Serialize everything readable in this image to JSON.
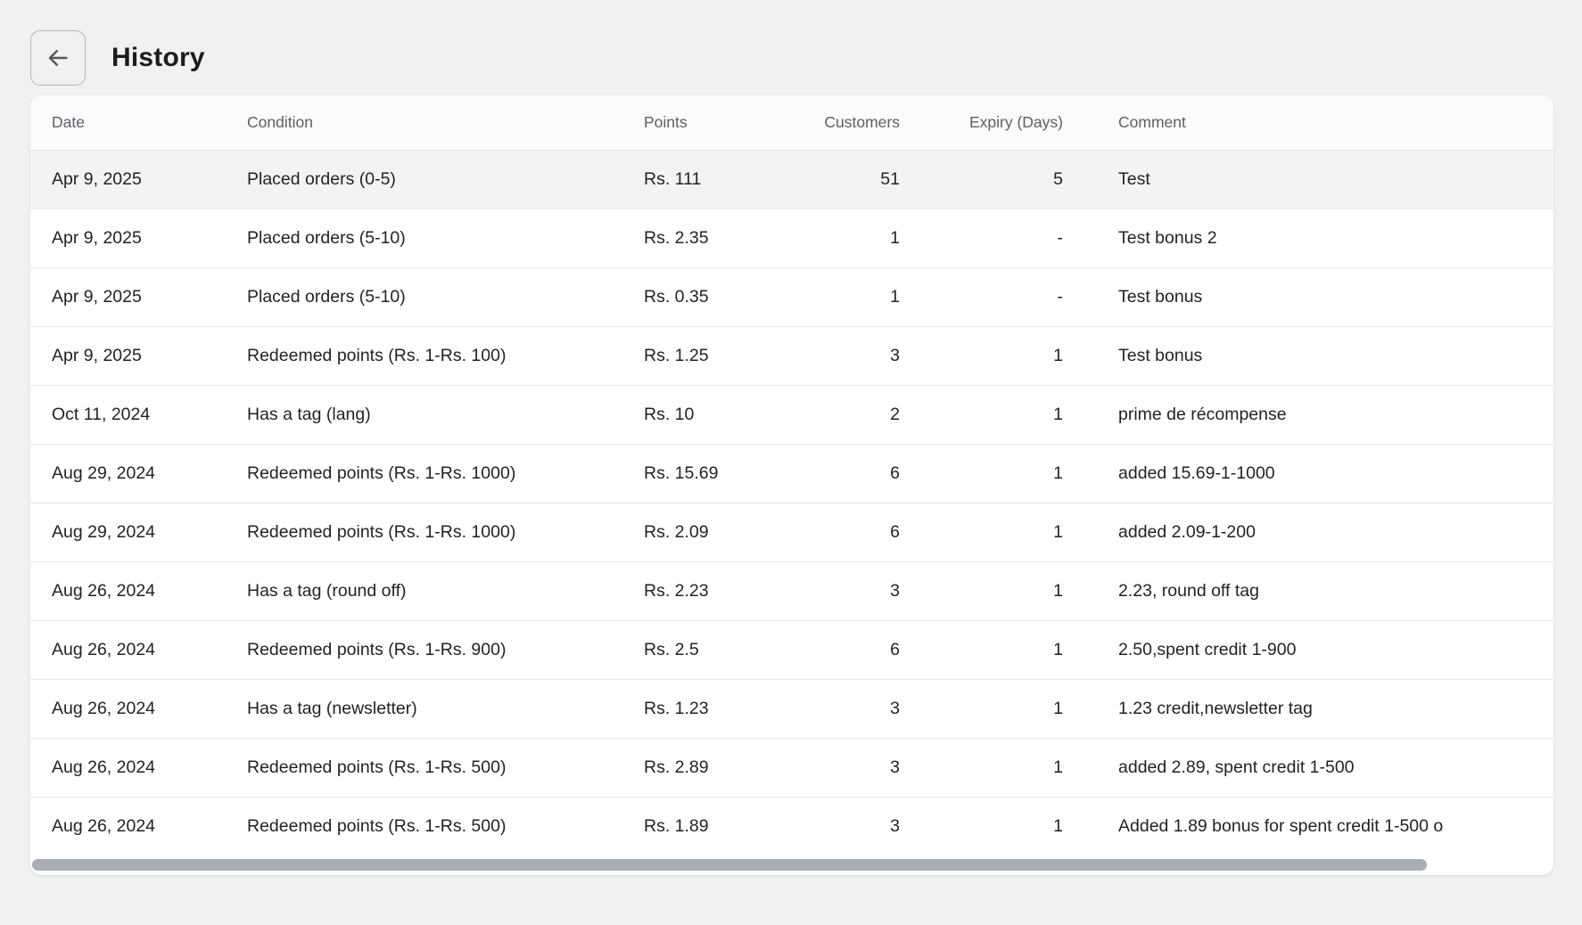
{
  "page": {
    "title": "History"
  },
  "header": {
    "back_button": {
      "icon_name": "arrow-left-icon",
      "glyph": "←"
    }
  },
  "table": {
    "columns": [
      {
        "key": "date",
        "label": "Date",
        "align": "left"
      },
      {
        "key": "condition",
        "label": "Condition",
        "align": "left"
      },
      {
        "key": "points",
        "label": "Points",
        "align": "left"
      },
      {
        "key": "customers",
        "label": "Customers",
        "align": "right"
      },
      {
        "key": "expiry",
        "label": "Expiry (Days)",
        "align": "right"
      },
      {
        "key": "comment",
        "label": "Comment",
        "align": "left"
      }
    ],
    "rows": [
      [
        "Apr 9, 2025",
        "Placed orders (0-5)",
        "Rs. 111",
        "51",
        "5",
        "Test"
      ],
      [
        "Apr 9, 2025",
        "Placed orders (5-10)",
        "Rs. 2.35",
        "1",
        "-",
        "Test bonus 2"
      ],
      [
        "Apr 9, 2025",
        "Placed orders (5-10)",
        "Rs. 0.35",
        "1",
        "-",
        "Test bonus"
      ],
      [
        "Apr 9, 2025",
        "Redeemed points (Rs. 1-Rs. 100)",
        "Rs. 1.25",
        "3",
        "1",
        "Test bonus"
      ],
      [
        "Oct 11, 2024",
        "Has a tag (lang)",
        "Rs. 10",
        "2",
        "1",
        "prime de récompense"
      ],
      [
        "Aug 29, 2024",
        "Redeemed points (Rs. 1-Rs. 1000)",
        "Rs. 15.69",
        "6",
        "1",
        "added 15.69-1-1000"
      ],
      [
        "Aug 29, 2024",
        "Redeemed points (Rs. 1-Rs. 1000)",
        "Rs. 2.09",
        "6",
        "1",
        "added 2.09-1-200"
      ],
      [
        "Aug 26, 2024",
        "Has a tag (round off)",
        "Rs. 2.23",
        "3",
        "1",
        "2.23, round off tag"
      ],
      [
        "Aug 26, 2024",
        "Redeemed points (Rs. 1-Rs. 900)",
        "Rs. 2.5",
        "6",
        "1",
        "2.50,spent credit 1-900"
      ],
      [
        "Aug 26, 2024",
        "Has a tag (newsletter)",
        "Rs. 1.23",
        "3",
        "1",
        "1.23 credit,newsletter tag"
      ],
      [
        "Aug 26, 2024",
        "Redeemed points (Rs. 1-Rs. 500)",
        "Rs. 2.89",
        "3",
        "1",
        "added 2.89, spent credit 1-500"
      ],
      [
        "Aug 26, 2024",
        "Redeemed points (Rs. 1-Rs. 500)",
        "Rs. 1.89",
        "3",
        "1",
        "Added 1.89 bonus for spent credit 1-500 o"
      ]
    ],
    "selected_row_index": 0
  },
  "colors": {
    "page_bg": "#f1f1f2",
    "card_bg": "#ffffff",
    "header_row_bg": "#fafbfb",
    "selected_row_bg": "#f2f3f3",
    "divider": "#e7e9ea",
    "text": "#1f2224",
    "muted_text": "#5c6063",
    "scrollbar_thumb": "#a9aeb4",
    "btn_border": "#b0b5bb",
    "icon": "#54585c",
    "title": "#1a1c1d"
  }
}
